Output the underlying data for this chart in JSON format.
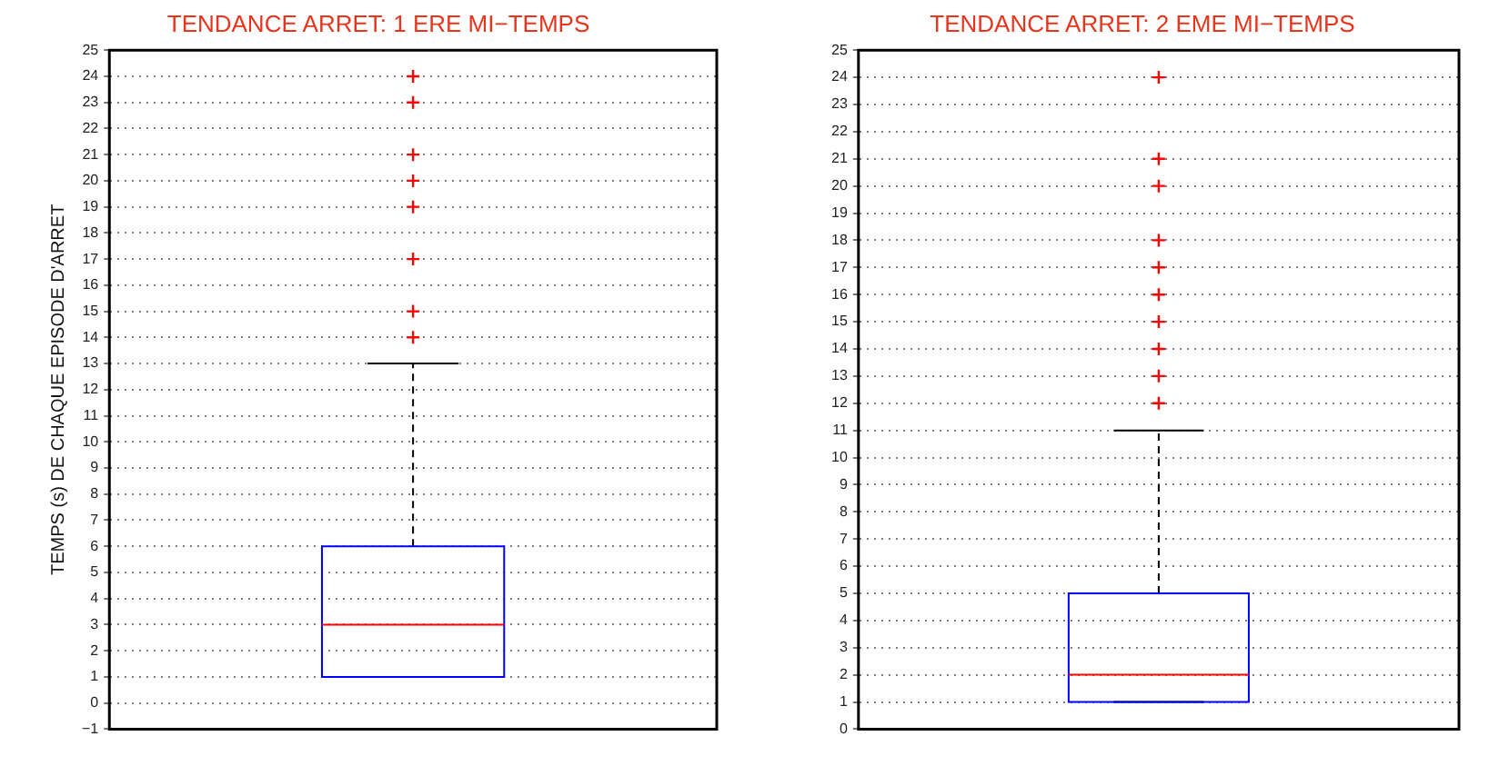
{
  "chart_data": [
    {
      "type": "box",
      "title": "TENDANCE ARRET: 1 ERE MI−TEMPS",
      "ylabel": "TEMPS (s) DE CHAQUE EPISODE D'ARRET",
      "categories": [
        null
      ],
      "color": "#0000ff",
      "boxes": [
        {
          "low": 1,
          "q1": 1,
          "median": 3,
          "q3": 6,
          "high": 13,
          "outliers": [
            14,
            15,
            17,
            19,
            20,
            21,
            23,
            24
          ]
        }
      ],
      "ylim": [
        -1,
        25
      ],
      "yticks": [
        -1,
        0,
        1,
        2,
        3,
        4,
        5,
        6,
        7,
        8,
        9,
        10,
        11,
        12,
        13,
        14,
        15,
        16,
        17,
        18,
        19,
        20,
        21,
        22,
        23,
        24,
        25
      ],
      "grid": "y",
      "tick_labels": "y"
    },
    {
      "type": "box",
      "title": "TENDANCE ARRET: 2 EME MI−TEMPS",
      "categories": [
        null
      ],
      "color": "#0000ff",
      "boxes": [
        {
          "low": 1,
          "q1": 1,
          "median": 2,
          "q3": 5,
          "high": 11,
          "outliers": [
            12,
            13,
            14,
            15,
            16,
            17,
            18,
            20,
            21,
            24
          ]
        }
      ],
      "ylim": [
        0,
        25
      ],
      "yticks": [
        0,
        1,
        2,
        3,
        4,
        5,
        6,
        7,
        8,
        9,
        10,
        11,
        12,
        13,
        14,
        15,
        16,
        17,
        18,
        19,
        20,
        21,
        22,
        23,
        24,
        25
      ],
      "grid": "y",
      "tick_labels": "y"
    }
  ]
}
